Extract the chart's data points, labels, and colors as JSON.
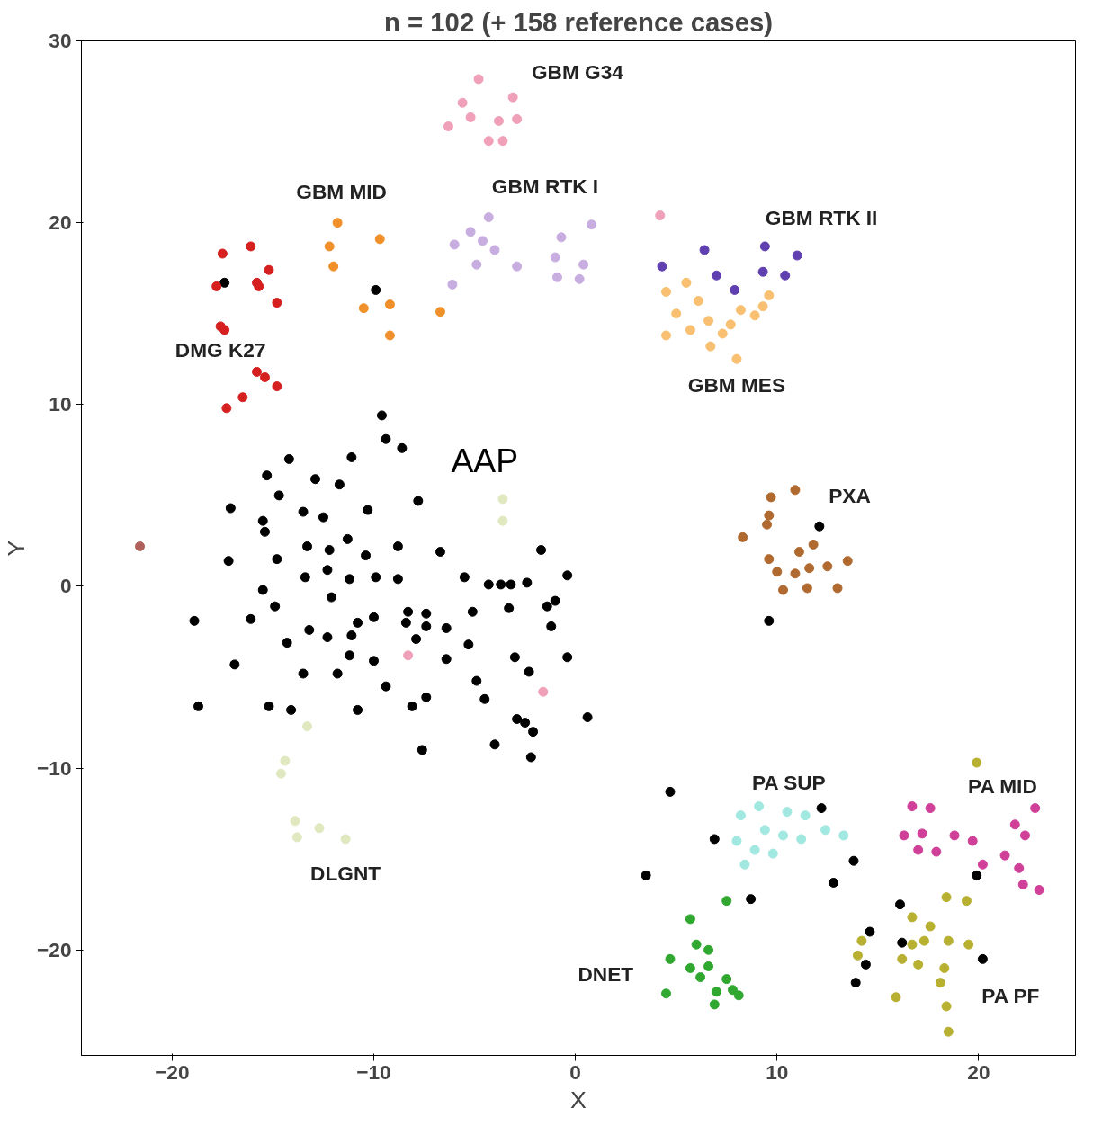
{
  "chart_data": {
    "type": "scatter",
    "title": "n = 102 (+ 158 reference cases)",
    "xlabel": "X",
    "ylabel": "Y",
    "xlim": [
      -24.5,
      24.8
    ],
    "ylim": [
      -25.8,
      30
    ],
    "xticks": [
      -20,
      -10,
      0,
      10,
      20
    ],
    "yticks": [
      -20,
      -10,
      0,
      10,
      20,
      30
    ],
    "grid": false,
    "marker": "circle",
    "series": [
      {
        "color": "#000000",
        "x": [
          -9.9,
          -17.4,
          -9.6,
          -9.4,
          -8.6,
          -14.2,
          -11.1,
          -15.3,
          -12.9,
          -11.7,
          -7.8,
          -17.1,
          -14.7,
          -10.3,
          -13.5,
          -12.5,
          -15.5,
          -15.4,
          -11.3,
          -13.3,
          -12.2,
          -10.4,
          -8.8,
          -6.7,
          -1.7,
          -17.2,
          -14.8,
          -13.4,
          -11.2,
          -9.9,
          -8.8,
          -12.3,
          -5.5,
          -4.3,
          -3.7,
          -3.2,
          -2.4,
          -0.4,
          -1.0,
          -1.4,
          -18.9,
          -15.5,
          -16.1,
          -14.9,
          -12.1,
          -10.0,
          -10.8,
          -8.3,
          -8.4,
          -7.4,
          -7.4,
          -6.4,
          -5.1,
          -3.3,
          -1.2,
          -13.2,
          -12.3,
          -11.1,
          -14.3,
          -11.2,
          -7.9,
          -5.3,
          -6.4,
          -3.0,
          -2.3,
          -0.4,
          -10.0,
          -16.9,
          -13.5,
          -11.8,
          -9.4,
          -4.9,
          -7.4,
          -4.5,
          -8.1,
          -18.7,
          -15.2,
          -14.1,
          -10.8,
          0.6,
          -2.9,
          -2.5,
          -2.1,
          -4.0,
          -7.6,
          -2.2,
          9.6,
          12.1,
          4.7,
          6.9,
          12.2,
          13.8,
          3.5,
          12.8,
          8.7,
          19.9,
          16.1,
          16.2,
          14.6,
          14.4,
          13.9,
          20.2
        ],
        "values": [
          16.3,
          16.7,
          9.4,
          8.1,
          7.6,
          7.0,
          7.1,
          6.1,
          5.9,
          5.6,
          4.7,
          4.3,
          5.0,
          4.2,
          4.1,
          3.8,
          3.6,
          3.0,
          2.6,
          2.2,
          2.0,
          1.7,
          2.2,
          1.9,
          2.0,
          1.4,
          1.5,
          0.5,
          0.4,
          0.5,
          0.4,
          0.9,
          0.5,
          0.1,
          0.1,
          0.1,
          0.2,
          0.6,
          -0.8,
          -1.1,
          -1.9,
          -0.2,
          -1.8,
          -1.1,
          -0.6,
          -1.7,
          -2.0,
          -1.4,
          -2.0,
          -1.5,
          -2.2,
          -2.3,
          -1.4,
          -1.2,
          -2.2,
          -2.4,
          -2.8,
          -2.7,
          -3.1,
          -3.8,
          -2.9,
          -3.2,
          -4.0,
          -3.9,
          -4.7,
          -3.9,
          -4.1,
          -4.3,
          -4.8,
          -4.8,
          -5.5,
          -5.2,
          -6.1,
          -6.2,
          -6.6,
          -6.6,
          -6.6,
          -6.8,
          -6.8,
          -7.2,
          -7.3,
          -7.5,
          -8.0,
          -8.7,
          -9.0,
          -9.4,
          -1.9,
          3.3,
          -11.3,
          -13.9,
          -12.2,
          -15.1,
          -15.9,
          -16.3,
          -17.2,
          -15.9,
          -17.5,
          -19.6,
          -19.0,
          -20.8,
          -21.8,
          -20.5
        ]
      },
      {
        "color": "#d62020",
        "x": [
          -17.5,
          -16.1,
          -15.2,
          -15.8,
          -15.7,
          -17.8,
          -14.8,
          -17.6,
          -17.4,
          -15.8,
          -15.4,
          -14.8,
          -16.5,
          -17.3
        ],
        "values": [
          18.3,
          18.7,
          17.4,
          16.7,
          16.5,
          16.5,
          15.6,
          14.3,
          14.1,
          11.8,
          11.5,
          11.0,
          10.4,
          9.8
        ]
      },
      {
        "color": "#f0902a",
        "x": [
          -11.8,
          -12.2,
          -12.0,
          -9.7,
          -10.5,
          -9.2,
          -9.2,
          -6.7
        ],
        "values": [
          20.0,
          18.7,
          17.6,
          19.1,
          15.3,
          15.5,
          13.8,
          15.1
        ]
      },
      {
        "color": "#f0a0b8",
        "x": [
          -4.8,
          -5.6,
          -3.1,
          -5.2,
          -3.8,
          -2.9,
          -6.3,
          -4.3,
          -3.6,
          4.2,
          -8.3,
          -1.6
        ],
        "values": [
          27.9,
          26.6,
          26.9,
          25.8,
          25.6,
          25.7,
          25.3,
          24.5,
          24.5,
          20.4,
          -3.8,
          -5.8
        ]
      },
      {
        "color": "#c8aee0",
        "x": [
          -4.3,
          -5.2,
          -4.6,
          -6.0,
          -4.0,
          -4.9,
          -2.9,
          -0.7,
          0.8,
          -1.0,
          0.4,
          0.2,
          -6.1,
          -0.9
        ],
        "values": [
          20.3,
          19.5,
          19.0,
          18.8,
          18.5,
          17.7,
          17.6,
          19.2,
          19.9,
          18.1,
          17.7,
          16.9,
          16.6,
          17.0
        ]
      },
      {
        "color": "#6040b0",
        "x": [
          4.3,
          6.4,
          7.0,
          7.9,
          9.4,
          9.3,
          10.4,
          11.0
        ],
        "values": [
          17.6,
          18.5,
          17.1,
          16.3,
          18.7,
          17.3,
          17.1,
          18.2
        ]
      },
      {
        "color": "#f8c070",
        "x": [
          4.5,
          5.5,
          5.0,
          4.5,
          5.7,
          6.6,
          7.3,
          8.2,
          8.9,
          9.3,
          9.6,
          6.1,
          6.7,
          8.0,
          7.7
        ],
        "values": [
          16.2,
          16.7,
          15.0,
          13.8,
          14.1,
          14.6,
          13.9,
          15.2,
          14.9,
          15.4,
          16.0,
          15.7,
          13.2,
          12.5,
          14.4
        ]
      },
      {
        "color": "#b06a30",
        "x": [
          9.7,
          10.9,
          9.6,
          9.5,
          8.3,
          9.6,
          11.1,
          11.8,
          11.6,
          12.5,
          10.0,
          10.9,
          10.3,
          11.5,
          13.0,
          13.5
        ],
        "values": [
          4.9,
          5.3,
          3.9,
          3.4,
          2.7,
          1.5,
          1.9,
          2.3,
          1.0,
          1.1,
          0.8,
          0.7,
          -0.2,
          -0.1,
          -0.1,
          1.4
        ]
      },
      {
        "color": "#b0605a",
        "x": [
          -21.6
        ],
        "values": [
          2.2
        ]
      },
      {
        "color": "#e0e8c0",
        "x": [
          -3.6,
          -3.6,
          -13.3,
          -14.4,
          -14.6,
          -13.9,
          -12.7,
          -11.4,
          -13.8
        ],
        "values": [
          4.8,
          3.6,
          -7.7,
          -9.6,
          -10.3,
          -12.9,
          -13.3,
          -13.9,
          -13.8
        ]
      },
      {
        "color": "#a0e8e0",
        "x": [
          8.2,
          9.1,
          10.5,
          11.4,
          9.4,
          10.3,
          11.2,
          8.0,
          8.9,
          9.8,
          12.4,
          13.3,
          8.4
        ],
        "values": [
          -12.6,
          -12.1,
          -12.4,
          -12.6,
          -13.4,
          -13.7,
          -13.9,
          -14.0,
          -14.5,
          -14.7,
          -13.4,
          -13.7,
          -15.3
        ]
      },
      {
        "color": "#d04098",
        "x": [
          16.7,
          17.6,
          16.3,
          17.2,
          17.9,
          18.8,
          17.0,
          19.7,
          20.2,
          21.3,
          22.3,
          22.8,
          21.8,
          22.0,
          22.2,
          23.0
        ],
        "values": [
          -12.1,
          -12.2,
          -13.7,
          -13.6,
          -14.6,
          -13.7,
          -14.5,
          -14.0,
          -15.3,
          -14.8,
          -13.7,
          -12.2,
          -13.1,
          -15.5,
          -16.4,
          -16.7
        ]
      },
      {
        "color": "#b8b030",
        "x": [
          19.4,
          18.4,
          16.7,
          17.6,
          18.5,
          16.7,
          17.3,
          19.5,
          16.2,
          17.0,
          18.3,
          18.1,
          15.9,
          18.4,
          18.5,
          14.2,
          14.0,
          19.9
        ],
        "values": [
          -17.3,
          -17.1,
          -18.2,
          -18.7,
          -19.5,
          -19.7,
          -19.5,
          -19.7,
          -20.5,
          -20.8,
          -21.0,
          -21.8,
          -22.6,
          -23.1,
          -24.5,
          -19.5,
          -20.3,
          -9.7
        ]
      },
      {
        "color": "#30a830",
        "x": [
          5.7,
          7.5,
          6.0,
          4.7,
          6.6,
          5.7,
          6.6,
          7.5,
          6.2,
          7.0,
          7.8,
          4.5,
          8.1,
          6.9
        ],
        "values": [
          -18.3,
          -17.3,
          -19.7,
          -20.5,
          -20.0,
          -21.0,
          -20.9,
          -21.6,
          -21.5,
          -22.3,
          -22.2,
          -22.4,
          -22.5,
          -23.0
        ]
      }
    ],
    "annotations": [
      "AAP",
      "GBM G34",
      "GBM MID",
      "GBM RTK I",
      "GBM RTK II",
      "DMG K27",
      "GBM MES",
      "PXA",
      "DLGNT",
      "PA SUP",
      "PA MID",
      "DNET",
      "PA PF"
    ]
  }
}
